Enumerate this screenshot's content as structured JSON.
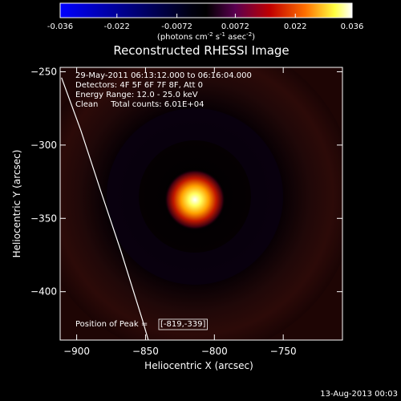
{
  "chart_data": {
    "type": "heatmap",
    "title": "Reconstructed RHESSI Image",
    "colorbar": {
      "ticks": [
        "-0.036",
        "-0.022",
        "-0.0072",
        "0.0072",
        "0.022",
        "0.036"
      ],
      "tick_values": [
        -0.036,
        -0.022,
        -0.0072,
        0.0072,
        0.022,
        0.036
      ],
      "range": [
        -0.036,
        0.036
      ],
      "label_main": "(photons cm",
      "label_exp1": "-2",
      "label_mid1": " s",
      "label_exp2": "-1",
      "label_mid2": " asec",
      "label_exp3": "-2",
      "label_end": ")",
      "colormap": [
        "#0000ff",
        "#000000",
        "#5a0050",
        "#c00000",
        "#ff7000",
        "#ffff40",
        "#ffffff"
      ]
    },
    "xlabel": "Heliocentric X (arcsec)",
    "ylabel": "Heliocentric Y (arcsec)",
    "xlim": [
      -912,
      -707
    ],
    "ylim": [
      -433,
      -247
    ],
    "xticks": [
      -900,
      -850,
      -800,
      -750
    ],
    "yticks": [
      -250,
      -300,
      -350,
      -400
    ],
    "annotations": [
      "29-May-2011 06:13:12.000 to 06:16:04.000",
      "Detectors: 4F 5F 6F 7F 8F, Att 0",
      "Energy Range: 12.0 - 25.0 keV",
      "Clean     Total counts: 6.01E+04"
    ],
    "peak_label": "Position of Peak =",
    "peak_value": "[-819,-339]",
    "peak_position": [
      -819,
      -339
    ],
    "limb_curve": [
      [
        -911,
        -254
      ],
      [
        -897,
        -290
      ],
      [
        -883,
        -330
      ],
      [
        -868,
        -372
      ],
      [
        -852,
        -420
      ],
      [
        -848,
        -433
      ]
    ]
  },
  "footer": {
    "timestamp": "13-Aug-2013 00:03"
  }
}
